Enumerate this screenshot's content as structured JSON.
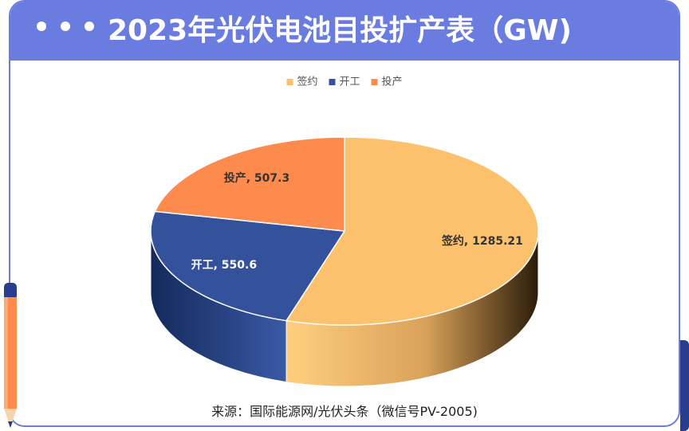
{
  "header": {
    "title": "2023年光伏电池目投扩产表（GW)"
  },
  "chart_data": {
    "type": "pie",
    "categories": [
      "签约",
      "开工",
      "投产"
    ],
    "values": [
      1285.21,
      550.6,
      507.3
    ],
    "data_labels": [
      "签约, 1285.21",
      "开工, 550.6",
      "投产, 507.3"
    ],
    "colors": [
      "#fcc16c",
      "#34519c",
      "#fd8b4e"
    ],
    "legend": [
      "签约",
      "开工",
      "投产"
    ],
    "legend_position": "top",
    "style": "3d"
  },
  "source": "来源：国际能源网/光伏头条（微信号PV-2005)"
}
